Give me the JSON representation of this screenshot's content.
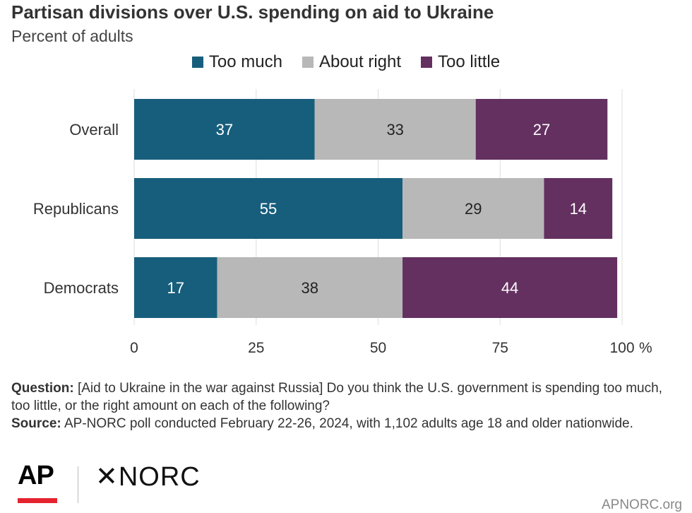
{
  "title": "Partisan divisions over U.S. spending on aid to Ukraine",
  "subtitle": "Percent of adults",
  "colors": {
    "too_much": "#175e7c",
    "about_right": "#b8b8b8",
    "too_little": "#633060",
    "grid": "#dddddd",
    "text": "#333333"
  },
  "chart_data": {
    "type": "bar",
    "orientation": "horizontal",
    "stacked": true,
    "categories": [
      "Overall",
      "Republicans",
      "Democrats"
    ],
    "series": [
      {
        "name": "Too much",
        "values": [
          37,
          55,
          17
        ]
      },
      {
        "name": "About right",
        "values": [
          33,
          29,
          38
        ]
      },
      {
        "name": "Too little",
        "values": [
          27,
          14,
          44
        ]
      }
    ],
    "xlim": [
      0,
      100
    ],
    "xticks": [
      "0",
      "25",
      "50",
      "75",
      "100"
    ],
    "x_unit": "%",
    "grid": true,
    "legend_position": "top"
  },
  "notes": {
    "question_label": "Question:",
    "question_text": " [Aid to Ukraine in the war against Russia] Do you think the U.S. government is spending too much, too little, or the right amount on each of the following?",
    "source_label": "Source:",
    "source_text": " AP-NORC poll conducted February 22-26, 2024, with 1,102 adults age 18 and older nationwide."
  },
  "footer": {
    "ap_logo": "AP",
    "norc_logo": "NORC",
    "site": "APNORC.org"
  }
}
